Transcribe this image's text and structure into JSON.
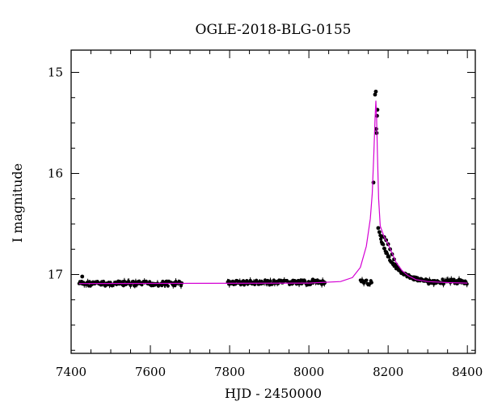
{
  "chart_data": {
    "type": "scatter",
    "title": "OGLE-2018-BLG-0155",
    "xlabel": "HJD - 2450000",
    "ylabel": "I magnitude",
    "xlim": [
      7400,
      8420
    ],
    "ylim": [
      17.78,
      14.78
    ],
    "y_inverted": true,
    "x_ticks": [
      7400,
      7600,
      7800,
      8000,
      8200,
      8400
    ],
    "y_ticks": [
      15,
      16,
      17
    ],
    "x_minor_step": 50,
    "y_minor_step": 0.25,
    "grid": false,
    "legend": "none",
    "colors": {
      "points": "#000000",
      "model": "#d400d4"
    },
    "points_seasons": [
      {
        "x_start": 7420,
        "x_end": 7680,
        "mag": 17.09
      },
      {
        "x_start": 7795,
        "x_end": 8040,
        "mag": 17.08
      },
      {
        "x_start": 8130,
        "x_end": 8160,
        "mag": 17.08
      },
      {
        "x_start": 8300,
        "x_end": 8400,
        "mag": 17.07
      }
    ],
    "points": [
      [
        7428,
        17.02
      ],
      [
        7455,
        17.08
      ],
      [
        7470,
        17.09
      ],
      [
        7490,
        17.1
      ],
      [
        7530,
        17.1
      ],
      [
        7560,
        17.11
      ],
      [
        7575,
        17.09
      ],
      [
        7600,
        17.1
      ],
      [
        7640,
        17.07
      ],
      [
        7675,
        17.08
      ],
      [
        7800,
        17.08
      ],
      [
        7850,
        17.08
      ],
      [
        7880,
        17.09
      ],
      [
        7920,
        17.07
      ],
      [
        7960,
        17.06
      ],
      [
        7990,
        17.07
      ],
      [
        8010,
        17.05
      ],
      [
        8040,
        17.08
      ],
      [
        8163,
        16.09
      ],
      [
        8167,
        15.22
      ],
      [
        8169,
        15.19
      ],
      [
        8170,
        15.56
      ],
      [
        8171,
        15.6
      ],
      [
        8172,
        15.43
      ],
      [
        8173,
        15.37
      ],
      [
        8175,
        16.54
      ],
      [
        8178,
        16.58
      ],
      [
        8183,
        16.62
      ],
      [
        8190,
        16.63
      ],
      [
        8195,
        16.66
      ],
      [
        8200,
        16.7
      ],
      [
        8205,
        16.75
      ],
      [
        8210,
        16.8
      ],
      [
        8215,
        16.85
      ],
      [
        8220,
        16.9
      ],
      [
        8225,
        16.93
      ],
      [
        8232,
        16.97
      ],
      [
        8240,
        17.0
      ],
      [
        8248,
        17.02
      ],
      [
        8255,
        17.03
      ],
      [
        8265,
        17.05
      ],
      [
        8275,
        17.06
      ],
      [
        8290,
        17.06
      ]
    ],
    "model": [
      [
        7420,
        17.09
      ],
      [
        8000,
        17.085
      ],
      [
        8080,
        17.07
      ],
      [
        8110,
        17.03
      ],
      [
        8130,
        16.93
      ],
      [
        8145,
        16.72
      ],
      [
        8155,
        16.45
      ],
      [
        8160,
        16.2
      ],
      [
        8164,
        15.8
      ],
      [
        8167,
        15.45
      ],
      [
        8169,
        15.28
      ],
      [
        8171,
        15.45
      ],
      [
        8173,
        15.8
      ],
      [
        8176,
        16.25
      ],
      [
        8180,
        16.52
      ],
      [
        8190,
        16.63
      ],
      [
        8200,
        16.7
      ],
      [
        8210,
        16.79
      ],
      [
        8220,
        16.88
      ],
      [
        8235,
        16.96
      ],
      [
        8250,
        17.01
      ],
      [
        8270,
        17.05
      ],
      [
        8300,
        17.07
      ],
      [
        8350,
        17.08
      ],
      [
        8400,
        17.085
      ]
    ]
  }
}
